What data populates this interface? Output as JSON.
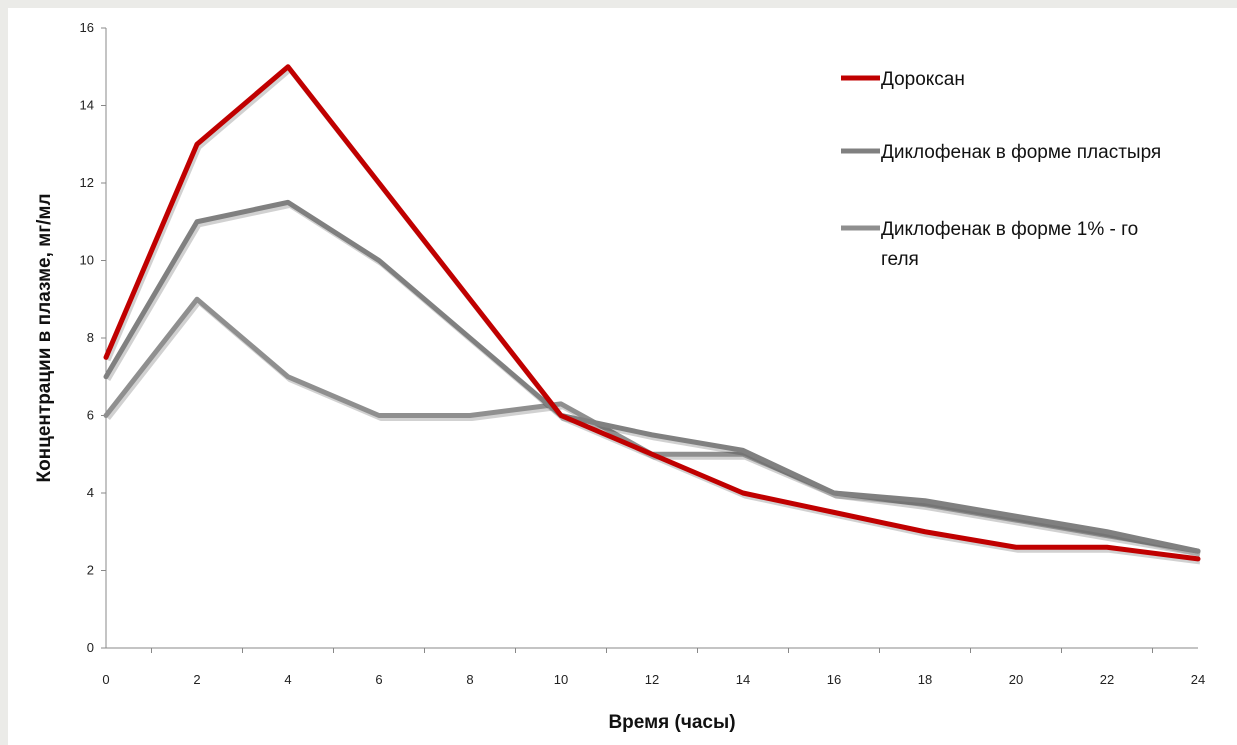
{
  "chart_data": {
    "type": "line",
    "x": [
      0,
      2,
      4,
      6,
      8,
      10,
      12,
      14,
      16,
      18,
      20,
      22,
      24
    ],
    "series": [
      {
        "name": "Дороксан",
        "color": "#c00000",
        "values": [
          7.5,
          13,
          15,
          12,
          9,
          6,
          5,
          4,
          3.5,
          3,
          2.6,
          2.6,
          2.3
        ]
      },
      {
        "name": "Диклофенак в форме пластыря",
        "color": "#808080",
        "values": [
          7,
          11,
          11.5,
          10,
          8,
          6,
          5.5,
          5.1,
          4,
          3.8,
          3.4,
          3,
          2.5
        ]
      },
      {
        "name": "Диклофенак в форме 1% - го геля",
        "name_lines": [
          "Диклофенак в форме 1% - го",
          "геля"
        ],
        "color": "#8f8f8f",
        "values": [
          6,
          9,
          7,
          6,
          6,
          6.3,
          5,
          5,
          4,
          3.7,
          3.3,
          2.9,
          2.5
        ]
      }
    ],
    "xlabel": "Время (часы)",
    "ylabel": "Концентрации в плазме, мг/мл",
    "xlim": [
      0,
      24
    ],
    "ylim": [
      0,
      16
    ],
    "x_ticks": [
      "0",
      "2",
      "4",
      "6",
      "8",
      "10",
      "12",
      "14",
      "16",
      "18",
      "20",
      "22",
      "24"
    ],
    "y_ticks": [
      "0",
      "2",
      "4",
      "6",
      "8",
      "10",
      "12",
      "14",
      "16"
    ],
    "grid": false,
    "legend_position": "top-right"
  }
}
